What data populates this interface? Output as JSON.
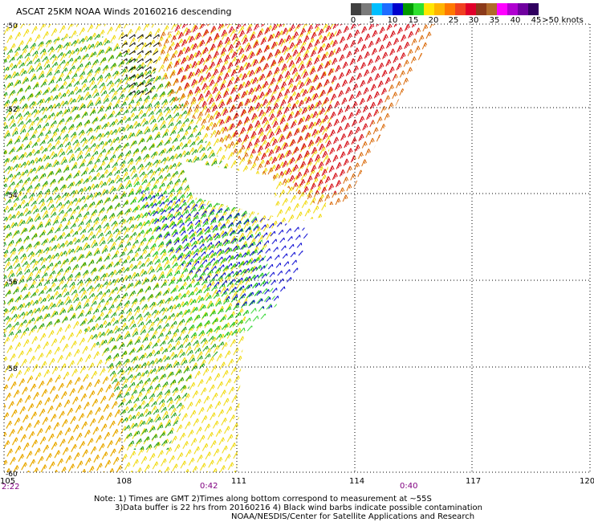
{
  "title": "ASCAT 25KM NOAA Winds 20160216 descending",
  "legend": {
    "colors": [
      "#404040",
      "#7a7a7a",
      "#00bfff",
      "#1e6cff",
      "#0000cd",
      "#009a00",
      "#2ee02e",
      "#ffe600",
      "#ffb400",
      "#ff7800",
      "#f04020",
      "#e0002a",
      "#8b3a1a",
      "#b06a2a",
      "#ff00ff",
      "#b000d0",
      "#7000a0",
      "#300060"
    ],
    "labels": [
      "0",
      "5",
      "10",
      "15",
      "20",
      "25",
      "30",
      "35",
      "40",
      "45",
      ">50 knots"
    ]
  },
  "axes": {
    "lat_labels": [
      "-50",
      "-52",
      "-54",
      "-56",
      "-58",
      "-60"
    ],
    "lon_labels": [
      "105",
      "108",
      "111",
      "114",
      "117",
      "120"
    ],
    "time_labels": [
      "2:22",
      "0:42",
      "0:40"
    ]
  },
  "notes": [
    "Note: 1) Times are GMT 2)Times along bottom correspond to measurement at ~55S",
    "3)Data buffer is 22 hrs from 20160216 4) Black wind barbs indicate possible contamination",
    "NOAA/NESDIS/Center for Satellite Applications and Research"
  ]
}
